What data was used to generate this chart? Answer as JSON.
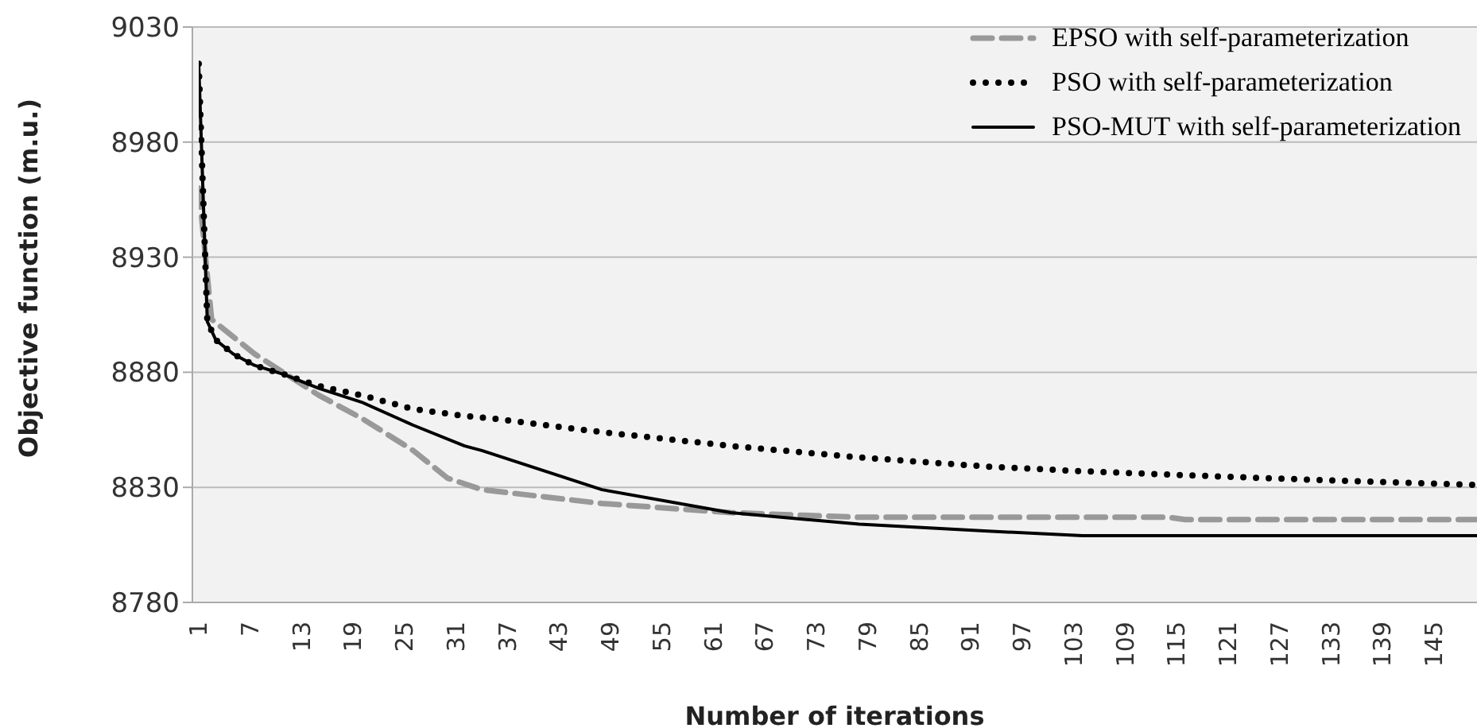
{
  "chart_data": {
    "type": "line",
    "xlabel": "Number of iterations",
    "ylabel": "Objective function (m.u.)",
    "xlim": [
      1,
      150
    ],
    "xticks": [
      1,
      7,
      13,
      19,
      25,
      31,
      37,
      43,
      49,
      55,
      61,
      67,
      73,
      79,
      85,
      91,
      97,
      103,
      109,
      115,
      121,
      127,
      133,
      139,
      145
    ],
    "ylim": [
      8780,
      9030
    ],
    "yticks": [
      8780,
      8830,
      8880,
      8930,
      8980,
      9030
    ],
    "grid": "y",
    "legend": "top right",
    "marker": "none",
    "series": [
      {
        "name": "EPSO with self-parameterization",
        "color": "#999999",
        "line_style": "dashed",
        "x": [
          1,
          2.5,
          7.5,
          15,
          17,
          20,
          26,
          30,
          34,
          48,
          63,
          78,
          93,
          114,
          116,
          150
        ],
        "values": [
          8960,
          8903,
          8888,
          8870,
          8866,
          8860,
          8846,
          8834,
          8829,
          8823,
          8819,
          8817,
          8817,
          8817,
          8816,
          8816
        ]
      },
      {
        "name": "PSO with self-parameterization",
        "color": "#000000",
        "line_style": "dotted",
        "x": [
          1,
          2,
          3,
          5,
          7.5,
          11,
          15,
          20,
          26,
          32,
          35,
          48,
          63,
          78,
          93,
          104,
          118,
          133,
          150
        ],
        "values": [
          9014,
          8902,
          8894,
          8888,
          8883,
          8879,
          8874,
          8870,
          8864,
          8861,
          8860,
          8854,
          8848,
          8843,
          8839,
          8837,
          8835,
          8833,
          8831
        ]
      },
      {
        "name": "PSO-MUT with self-parameterization",
        "color": "#000000",
        "line_style": "solid",
        "x": [
          1,
          2,
          3,
          5,
          7.5,
          11,
          15,
          20,
          26,
          32,
          34,
          48,
          63,
          78,
          93,
          104,
          150
        ],
        "values": [
          9014,
          8902,
          8894,
          8888,
          8883,
          8879,
          8873,
          8867,
          8857,
          8848,
          8846,
          8829,
          8819,
          8814,
          8811,
          8809,
          8809
        ]
      }
    ]
  }
}
